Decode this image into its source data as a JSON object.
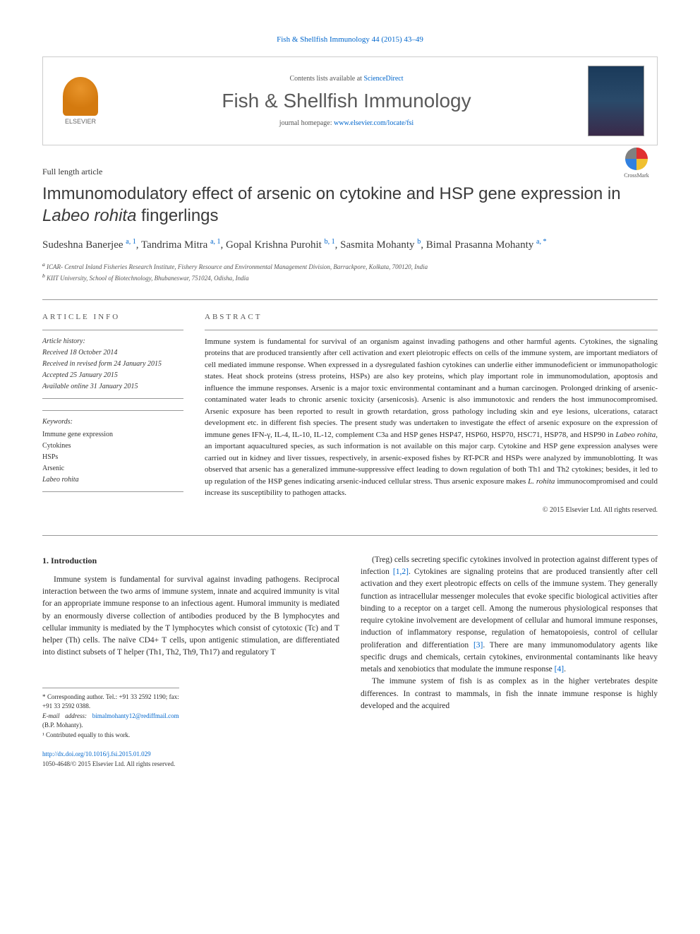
{
  "journal_ref": "Fish & Shellfish Immunology 44 (2015) 43–49",
  "header": {
    "contents_prefix": "Contents lists available at ",
    "contents_link": "ScienceDirect",
    "journal_name": "Fish & Shellfish Immunology",
    "homepage_prefix": "journal homepage: ",
    "homepage_url": "www.elsevier.com/locate/fsi",
    "publisher": "ELSEVIER"
  },
  "article_type": "Full length article",
  "title_html": "Immunomodulatory effect of arsenic on cytokine and HSP gene expression in <em>Labeo rohita</em> fingerlings",
  "crossmark": "CrossMark",
  "authors_html": "Sudeshna Banerjee <sup>a, 1</sup>, Tandrima Mitra <sup>a, 1</sup>, Gopal Krishna Purohit <sup>b, 1</sup>, Sasmita Mohanty <sup>b</sup>, Bimal Prasanna Mohanty <sup>a, *</sup>",
  "affiliations": {
    "a": "ICAR- Central Inland Fisheries Research Institute, Fishery Resource and Environmental Management Division, Barrackpore, Kolkata, 700120, India",
    "b": "KIIT University, School of Biotechnology, Bhubaneswar, 751024, Odisha, India"
  },
  "article_info": {
    "label": "ARTICLE INFO",
    "history_hdr": "Article history:",
    "received": "Received 18 October 2014",
    "revised": "Received in revised form 24 January 2015",
    "accepted": "Accepted 25 January 2015",
    "online": "Available online 31 January 2015",
    "keywords_hdr": "Keywords:",
    "keywords": [
      "Immune gene expression",
      "Cytokines",
      "HSPs",
      "Arsenic",
      "Labeo rohita"
    ]
  },
  "abstract": {
    "label": "ABSTRACT",
    "text_html": "Immune system is fundamental for survival of an organism against invading pathogens and other harmful agents. Cytokines, the signaling proteins that are produced transiently after cell activation and exert pleiotropic effects on cells of the immune system, are important mediators of cell mediated immune response. When expressed in a dysregulated fashion cytokines can underlie either immunodeficient or immunopathologic states. Heat shock proteins (stress proteins, HSPs) are also key proteins, which play important role in immunomodulation, apoptosis and influence the immune responses. Arsenic is a major toxic environmental contaminant and a human carcinogen. Prolonged drinking of arsenic-contaminated water leads to chronic arsenic toxicity (arsenicosis). Arsenic is also immunotoxic and renders the host immunocompromised. Arsenic exposure has been reported to result in growth retardation, gross pathology including skin and eye lesions, ulcerations, cataract development etc. in different fish species. The present study was undertaken to investigate the effect of arsenic exposure on the expression of immune genes IFN-γ, IL-4, IL-10, IL-12, complement C3a and HSP genes HSP47, HSP60, HSP70, HSC71, HSP78, and HSP90 in <em>Labeo rohita</em>, an important aquacultured species, as such information is not available on this major carp. Cytokine and HSP gene expression analyses were carried out in kidney and liver tissues, respectively, in arsenic-exposed fishes by RT-PCR and HSPs were analyzed by immunoblotting. It was observed that arsenic has a generalized immune-suppressive effect leading to down regulation of both Th1 and Th2 cytokines; besides, it led to up regulation of the HSP genes indicating arsenic-induced cellular stress. Thus arsenic exposure makes <em>L. rohita</em> immunocompromised and could increase its susceptibility to pathogen attacks.",
    "copyright": "© 2015 Elsevier Ltd. All rights reserved."
  },
  "body": {
    "section_heading": "1. Introduction",
    "col1_html": "Immune system is fundamental for survival against invading pathogens. Reciprocal interaction between the two arms of immune system, innate and acquired immunity is vital for an appropriate immune response to an infectious agent. Humoral immunity is mediated by an enormously diverse collection of antibodies produced by the B lymphocytes and cellular immunity is mediated by the T lymphocytes which consist of cytotoxic (Tc) and T helper (Th) cells. The naïve CD4+ T cells, upon antigenic stimulation, are differentiated into distinct subsets of T helper (Th1, Th2, Th9, Th17) and regulatory T",
    "col2_p1_html": "(Treg) cells secreting specific cytokines involved in protection against different types of infection <a href='#'>[1,2]</a>. Cytokines are signaling proteins that are produced transiently after cell activation and they exert pleotropic effects on cells of the immune system. They generally function as intracellular messenger molecules that evoke specific biological activities after binding to a receptor on a target cell. Among the numerous physiological responses that require cytokine involvement are development of cellular and humoral immune responses, induction of inflammatory response, regulation of hematopoiesis, control of cellular proliferation and differentiation <a href='#'>[3]</a>. There are many immunomodulatory agents like specific drugs and chemicals, certain cytokines, environmental contaminants like heavy metals and xenobiotics that modulate the immune response <a href='#'>[4]</a>.",
    "col2_p2_html": "The immune system of fish is as complex as in the higher vertebrates despite differences. In contrast to mammals, in fish the innate immune response is highly developed and the acquired"
  },
  "footnotes": {
    "corresp": "* Corresponding author. Tel.: +91 33 2592 1190; fax: +91 33 2592 0388.",
    "email_label": "E-mail address:",
    "email": "bimalmohanty12@rediffmail.com",
    "email_person": "(B.P. Mohanty).",
    "equal": "¹ Contributed equally to this work."
  },
  "doi": "http://dx.doi.org/10.1016/j.fsi.2015.01.029",
  "issn_line": "1050-4648/© 2015 Elsevier Ltd. All rights reserved.",
  "colors": {
    "link": "#0066cc",
    "text": "#2a2a2a",
    "border": "#cccccc",
    "rule": "#999999"
  }
}
